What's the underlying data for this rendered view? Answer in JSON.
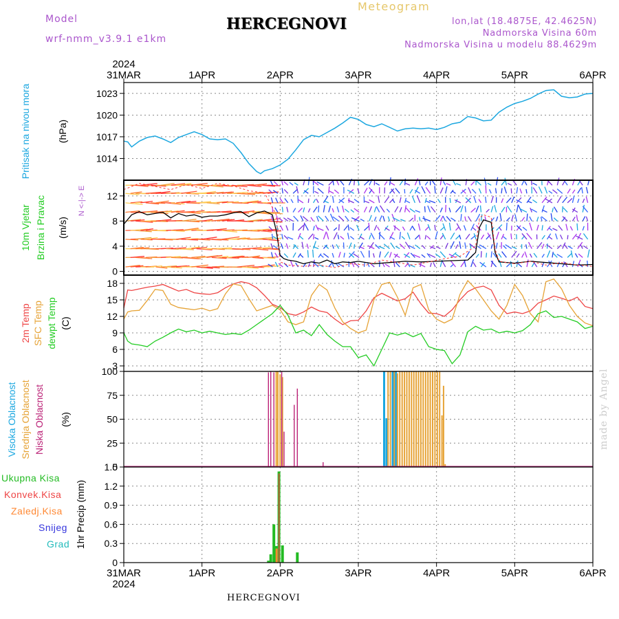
{
  "header": {
    "model_label": "Model",
    "model_name": "wrf-nmm_v3.9.1  e1km",
    "city": "HERCEGNOVI",
    "title": "Meteogram",
    "lonlat": "lon,lat (18.4875E, 42.4625N)",
    "elevation": "Nadmorska Visina 60m",
    "model_elevation": "Nadmorska Visina u modelu 88.4629m",
    "footer_city": "HERCEGNOVI",
    "watermark": "made by Angel",
    "year_top": "2024",
    "year_bottom": "2024"
  },
  "colors": {
    "pressure": "#1ba7e0",
    "wind_gust": "#ff3333",
    "wind_speed": "#000000",
    "t2m": "#ee4444",
    "tsfc": "#e6a336",
    "dewpt": "#22cc22",
    "cloud_high": "#1ba7e0",
    "cloud_mid": "#e6a336",
    "cloud_low": "#bb2277",
    "precip_total": "#22bb22",
    "precip_conv": "#ee4444",
    "precip_frz": "#ff8833",
    "snow": "#3333dd",
    "hail": "#22bbbb",
    "model_purple": "#aa55cc"
  },
  "chart_data": [
    {
      "type": "line",
      "name": "pressure-panel",
      "ylabel": "Pritisak na nivou mora",
      "unit": "(hPa)",
      "x_categories": [
        "31MAR",
        "1APR",
        "2APR",
        "3APR",
        "4APR",
        "5APR",
        "6APR"
      ],
      "yticks": [
        1014,
        1017,
        1020,
        1023
      ],
      "ylim": [
        1011,
        1024.5
      ],
      "grid": true,
      "series": [
        {
          "key": "pressure",
          "x": [
            0,
            0.05,
            0.1,
            0.2,
            0.3,
            0.4,
            0.5,
            0.6,
            0.7,
            0.8,
            0.9,
            1.0,
            1.1,
            1.2,
            1.3,
            1.4,
            1.5,
            1.6,
            1.7,
            1.75,
            1.8,
            1.9,
            2.0,
            2.1,
            2.2,
            2.3,
            2.4,
            2.5,
            2.6,
            2.7,
            2.8,
            2.9,
            3.0,
            3.1,
            3.2,
            3.3,
            3.4,
            3.5,
            3.6,
            3.7,
            3.8,
            3.9,
            4.0,
            4.1,
            4.2,
            4.3,
            4.4,
            4.5,
            4.6,
            4.7,
            4.8,
            4.9,
            5.0,
            5.1,
            5.2,
            5.3,
            5.4,
            5.5,
            5.6,
            5.7,
            5.8,
            5.9,
            6.0
          ],
          "values": [
            1016.4,
            1016.3,
            1015.6,
            1016.4,
            1016.9,
            1017.1,
            1016.7,
            1016.2,
            1016.9,
            1017.3,
            1017.7,
            1017.3,
            1016.7,
            1016.6,
            1016.7,
            1016.1,
            1014.8,
            1013.3,
            1012.2,
            1011.9,
            1012.3,
            1012.6,
            1013.1,
            1013.9,
            1015.2,
            1016.6,
            1017.2,
            1017.0,
            1017.6,
            1018.2,
            1018.9,
            1019.7,
            1019.4,
            1018.7,
            1018.4,
            1018.8,
            1018.3,
            1017.8,
            1018.1,
            1018.2,
            1018.1,
            1018.2,
            1018.0,
            1018.3,
            1018.8,
            1019.0,
            1019.8,
            1019.6,
            1019.2,
            1019.3,
            1020.4,
            1021.1,
            1021.6,
            1021.9,
            1022.3,
            1022.9,
            1023.4,
            1023.5,
            1022.6,
            1022.4,
            1022.5,
            1022.9,
            1023.0
          ]
        }
      ]
    },
    {
      "type": "line",
      "name": "wind-panel",
      "ylabel": "10m Vjetar Brzina i Pravac",
      "unit": "(m/s)",
      "direction_legend": "N <-|-> E",
      "yticks": [
        0,
        4,
        8,
        12
      ],
      "ylim": [
        -0.6,
        14.5
      ],
      "grid": true,
      "series": [
        {
          "key": "wind_speed",
          "x": [
            0,
            0.1,
            0.2,
            0.3,
            0.4,
            0.5,
            0.6,
            0.7,
            0.8,
            0.9,
            1.0,
            1.1,
            1.2,
            1.3,
            1.4,
            1.5,
            1.6,
            1.7,
            1.8,
            1.9,
            1.95,
            2.0,
            2.05,
            2.1,
            2.2,
            2.3,
            2.4,
            2.5,
            2.6,
            2.7,
            2.8,
            2.9,
            3.0,
            3.2,
            3.4,
            3.6,
            3.8,
            4.0,
            4.2,
            4.4,
            4.5,
            4.55,
            4.6,
            4.65,
            4.7,
            4.75,
            4.8,
            5.0,
            5.2,
            5.4,
            5.6,
            5.8,
            6.0
          ],
          "values": [
            7.5,
            9.0,
            9.5,
            9.0,
            9.2,
            9.4,
            8.5,
            9.2,
            8.8,
            9.0,
            8.6,
            8.8,
            8.8,
            9.0,
            9.3,
            9.5,
            8.7,
            9.3,
            9.6,
            9.0,
            6.5,
            2.5,
            2.0,
            1.8,
            1.6,
            1.2,
            1.5,
            1.3,
            1.8,
            1.2,
            1.5,
            1.4,
            1.6,
            1.2,
            1.4,
            1.6,
            1.5,
            1.6,
            1.7,
            1.8,
            3.0,
            7.0,
            8.2,
            8.0,
            7.8,
            3.0,
            1.5,
            1.3,
            1.6,
            1.4,
            1.2,
            1.0,
            1.1
          ]
        },
        {
          "key": "wind_gust",
          "x": [
            0,
            0.2,
            0.4,
            0.6,
            0.8,
            1.0,
            1.2,
            1.4,
            1.6,
            1.8,
            1.95,
            2.0,
            2.1,
            2.3,
            2.5,
            2.7,
            2.9,
            3.1,
            3.3,
            3.5,
            3.7,
            3.9,
            4.1,
            4.3,
            4.5,
            4.55,
            4.6,
            4.7,
            4.75,
            4.8,
            5.0,
            5.2,
            5.4,
            5.6,
            5.8,
            6.0
          ],
          "values": [
            13.0,
            14.0,
            13.5,
            13.0,
            13.8,
            13.2,
            14.0,
            13.6,
            12.8,
            12.5,
            9.0,
            1.5,
            1.0,
            0.8,
            1.0,
            0.6,
            1.2,
            1.0,
            1.8,
            1.4,
            1.0,
            1.5,
            2.0,
            2.4,
            4.0,
            8.5,
            9.0,
            8.6,
            3.5,
            1.6,
            1.2,
            1.6,
            1.0,
            1.4,
            1.0,
            0.8
          ]
        }
      ]
    },
    {
      "type": "line",
      "name": "temperature-panel",
      "ylabel": [
        "2m Temp",
        "SFC Temp",
        "dewpt Temp"
      ],
      "unit": "(C)",
      "yticks": [
        3,
        6,
        9,
        12,
        15,
        18
      ],
      "ylim": [
        2,
        19.5
      ],
      "grid": true,
      "series": [
        {
          "key": "t2m",
          "x": [
            0,
            0.05,
            0.1,
            0.2,
            0.3,
            0.4,
            0.5,
            0.6,
            0.7,
            0.8,
            0.9,
            1.0,
            1.1,
            1.2,
            1.3,
            1.4,
            1.5,
            1.6,
            1.7,
            1.8,
            1.9,
            2.0,
            2.1,
            2.2,
            2.3,
            2.4,
            2.5,
            2.6,
            2.7,
            2.8,
            2.9,
            3.0,
            3.1,
            3.2,
            3.3,
            3.4,
            3.5,
            3.6,
            3.7,
            3.8,
            3.9,
            4.0,
            4.1,
            4.2,
            4.3,
            4.4,
            4.5,
            4.6,
            4.7,
            4.8,
            4.9,
            5.0,
            5.1,
            5.2,
            5.3,
            5.4,
            5.5,
            5.6,
            5.7,
            5.8,
            5.9,
            6.0
          ],
          "values": [
            13.5,
            16.8,
            16.7,
            17.0,
            17.3,
            17.5,
            17.8,
            17.2,
            16.6,
            16.9,
            16.3,
            16.1,
            16.0,
            16.3,
            17.2,
            17.9,
            18.3,
            18.0,
            17.2,
            15.8,
            14.2,
            13.6,
            12.5,
            12.2,
            12.8,
            13.7,
            13.0,
            12.7,
            11.5,
            10.5,
            11.2,
            11.3,
            13.0,
            15.4,
            16.2,
            15.5,
            14.8,
            15.2,
            16.4,
            14.3,
            12.6,
            12.5,
            12.0,
            13.2,
            15.0,
            16.5,
            17.2,
            17.5,
            16.8,
            14.0,
            12.5,
            12.8,
            12.5,
            13.0,
            14.4,
            15.0,
            15.7,
            15.3,
            14.8,
            15.5,
            13.8,
            13.4
          ]
        },
        {
          "key": "tsfc",
          "x": [
            0,
            0.05,
            0.1,
            0.2,
            0.3,
            0.4,
            0.5,
            0.6,
            0.7,
            0.8,
            0.9,
            1.0,
            1.1,
            1.2,
            1.3,
            1.4,
            1.5,
            1.6,
            1.7,
            1.8,
            1.9,
            2.0,
            2.1,
            2.2,
            2.3,
            2.4,
            2.5,
            2.6,
            2.7,
            2.8,
            2.9,
            3.0,
            3.1,
            3.2,
            3.3,
            3.4,
            3.5,
            3.6,
            3.7,
            3.8,
            3.9,
            4.0,
            4.1,
            4.2,
            4.3,
            4.4,
            4.5,
            4.6,
            4.7,
            4.8,
            4.9,
            5.0,
            5.1,
            5.2,
            5.3,
            5.4,
            5.5,
            5.6,
            5.7,
            5.8,
            5.9,
            6.0
          ],
          "values": [
            11.5,
            12.8,
            13.0,
            13.1,
            14.9,
            16.9,
            16.7,
            14.2,
            13.6,
            13.4,
            13.2,
            13.5,
            13.0,
            13.4,
            16.1,
            17.9,
            17.6,
            15.2,
            13.0,
            13.5,
            14.0,
            13.2,
            11.0,
            10.5,
            11.0,
            15.8,
            17.8,
            16.8,
            13.5,
            11.0,
            9.8,
            9.0,
            9.5,
            15.0,
            17.8,
            18.2,
            15.5,
            12.2,
            17.2,
            17.8,
            13.2,
            11.5,
            10.8,
            11.5,
            16.0,
            18.5,
            17.0,
            15.0,
            13.0,
            11.5,
            14.0,
            17.8,
            15.8,
            12.5,
            11.0,
            18.3,
            18.8,
            17.0,
            14.0,
            12.0,
            10.8,
            10.3
          ]
        },
        {
          "key": "dewpt",
          "x": [
            0,
            0.05,
            0.1,
            0.2,
            0.3,
            0.4,
            0.5,
            0.6,
            0.7,
            0.8,
            0.9,
            1.0,
            1.1,
            1.2,
            1.3,
            1.4,
            1.5,
            1.6,
            1.7,
            1.8,
            1.9,
            2.0,
            2.1,
            2.2,
            2.3,
            2.4,
            2.5,
            2.6,
            2.7,
            2.8,
            2.9,
            3.0,
            3.1,
            3.2,
            3.3,
            3.4,
            3.5,
            3.6,
            3.7,
            3.8,
            3.9,
            4.0,
            4.1,
            4.2,
            4.3,
            4.4,
            4.5,
            4.6,
            4.7,
            4.8,
            4.9,
            5.0,
            5.1,
            5.2,
            5.3,
            5.4,
            5.5,
            5.6,
            5.7,
            5.8,
            5.9,
            6.0
          ],
          "values": [
            9.0,
            7.5,
            7.0,
            6.8,
            6.5,
            7.5,
            8.2,
            9.0,
            9.7,
            9.2,
            9.5,
            9.0,
            9.3,
            9.0,
            8.7,
            8.9,
            8.7,
            9.5,
            10.5,
            11.5,
            12.5,
            14.0,
            12.2,
            9.0,
            9.5,
            8.5,
            10.5,
            8.7,
            7.5,
            6.5,
            6.5,
            4.5,
            5.0,
            3.0,
            6.0,
            9.0,
            8.6,
            9.0,
            8.3,
            8.9,
            6.5,
            6.0,
            5.8,
            3.4,
            5.0,
            9.2,
            10.2,
            9.5,
            9.7,
            9.0,
            9.3,
            9.0,
            9.4,
            10.5,
            12.5,
            13.0,
            11.8,
            12.0,
            11.5,
            11.0,
            9.8,
            10.2
          ]
        }
      ]
    },
    {
      "type": "bar",
      "name": "cloud-panel",
      "ylabel": [
        "Visoka Oblacnost",
        "Srednja Oblacnost",
        "Niska Oblacnost"
      ],
      "unit": "(%)",
      "yticks": [
        0,
        25,
        50,
        75,
        100
      ],
      "ylim": [
        0,
        100
      ],
      "grid": true,
      "series": [
        {
          "key": "cloud_high",
          "x": [
            3.33,
            3.36,
            3.44,
            3.48
          ],
          "values": [
            100,
            51,
            100,
            100
          ]
        },
        {
          "key": "cloud_mid",
          "x": [
            1.95,
            1.97,
            2.0,
            2.03,
            3.38,
            3.41,
            3.46,
            3.5,
            3.53,
            3.56,
            3.59,
            3.62,
            3.65,
            3.68,
            3.71,
            3.74,
            3.77,
            3.8,
            3.83,
            3.86,
            3.89,
            3.92,
            3.95,
            3.98,
            4.01,
            4.04,
            4.07,
            4.09,
            4.11
          ],
          "values": [
            100,
            100,
            97,
            94,
            100,
            100,
            100,
            98,
            100,
            100,
            100,
            100,
            100,
            100,
            100,
            100,
            100,
            100,
            100,
            100,
            100,
            100,
            100,
            100,
            100,
            100,
            54,
            85,
            3
          ]
        },
        {
          "key": "cloud_low",
          "x": [
            1.85,
            1.88,
            1.92,
            2.02,
            2.05,
            2.18,
            2.22,
            2.55
          ],
          "values": [
            99,
            100,
            99,
            100,
            37,
            65,
            82,
            5
          ]
        }
      ]
    },
    {
      "type": "bar",
      "name": "precip-panel",
      "ylabel": "1hr Precip (mm)",
      "legend": [
        "Ukupna Kisa",
        "Konvek.Kisa",
        "Zaledj.Kisa",
        "Snijeg",
        "Grad"
      ],
      "x_categories": [
        "31MAR",
        "1APR",
        "2APR",
        "3APR",
        "4APR",
        "5APR",
        "6APR"
      ],
      "yticks": [
        0,
        0.3,
        0.6,
        0.9,
        1.2,
        1.5
      ],
      "ylim": [
        0,
        1.5
      ],
      "grid": true,
      "series": [
        {
          "key": "precip_total",
          "x": [
            1.85,
            1.88,
            1.92,
            1.95,
            1.985,
            2.03,
            2.22
          ],
          "values": [
            0.03,
            0.13,
            0.6,
            0.26,
            1.43,
            0.27,
            0.16
          ]
        },
        {
          "key": "precip_conv",
          "x": [
            1.985
          ],
          "values": [
            1.4
          ]
        },
        {
          "key": "precip_frz",
          "x": [
            1.92
          ],
          "values": [
            0.22
          ]
        }
      ]
    }
  ]
}
